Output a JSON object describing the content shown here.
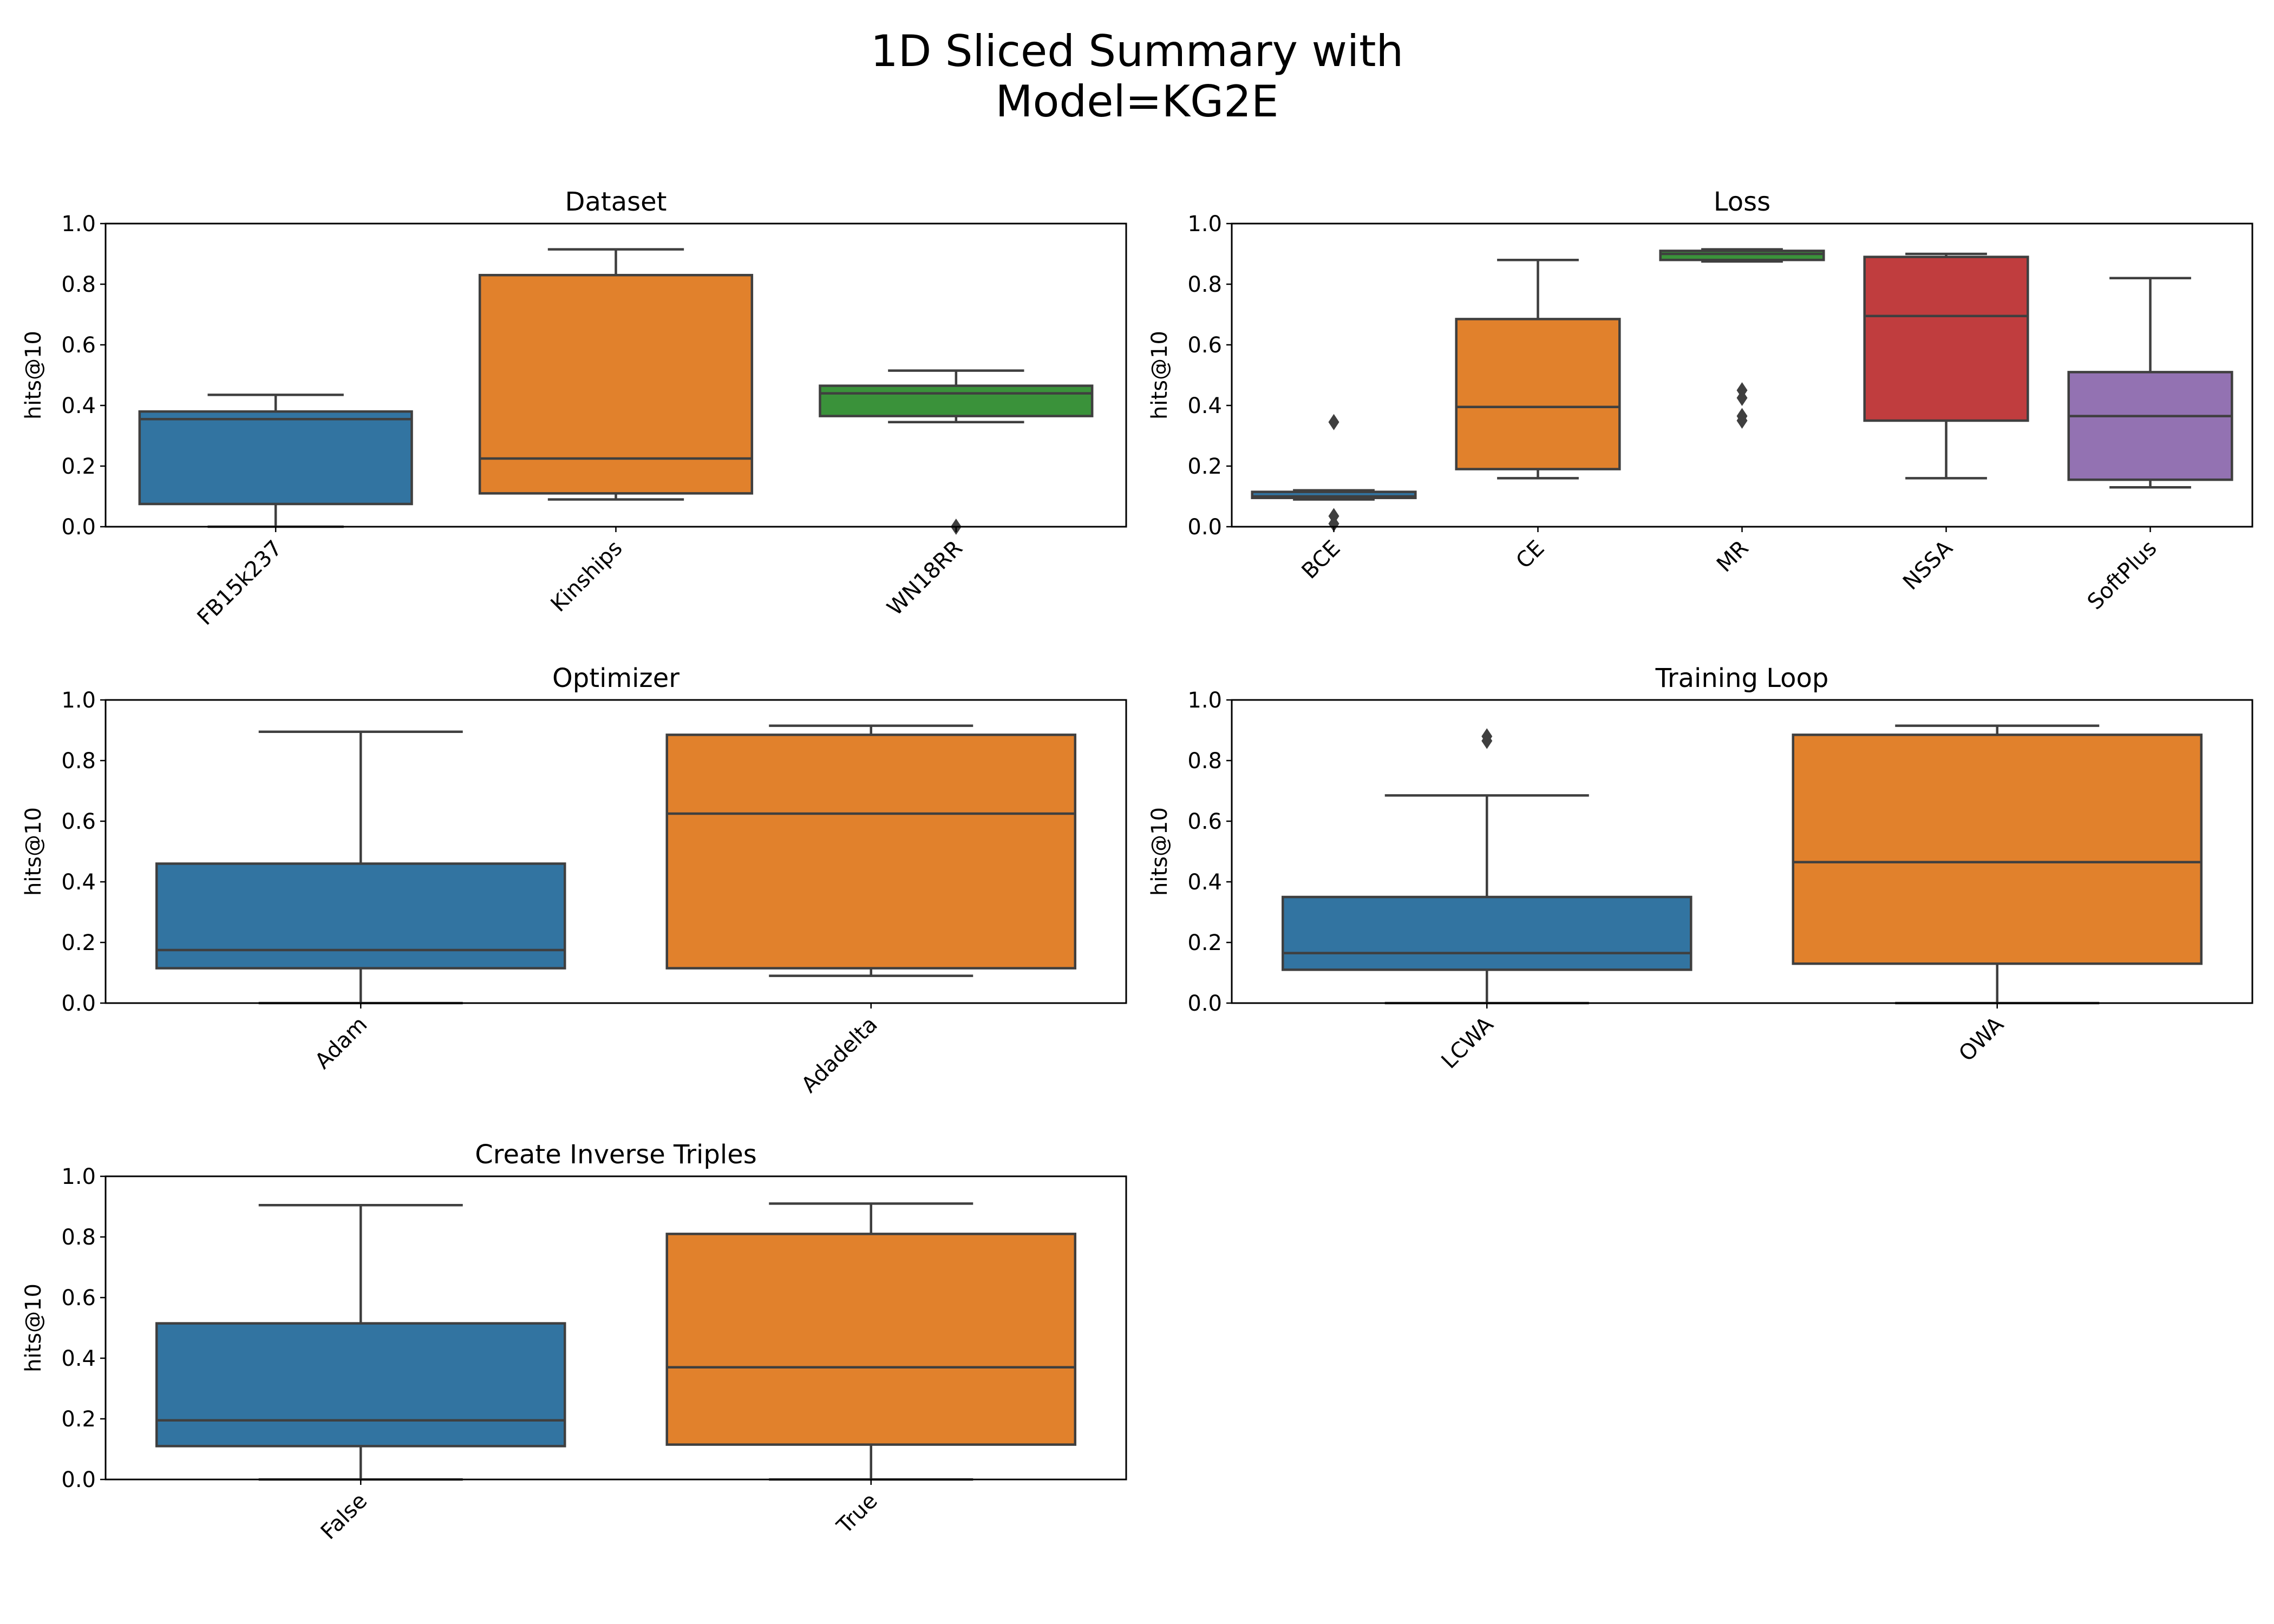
{
  "figure_title_lines": [
    "1D Sliced Summary with",
    "Model=KG2E"
  ],
  "chart_data": [
    {
      "type": "box",
      "title": "Dataset",
      "xlabel": "",
      "ylabel": "hits@10",
      "ylim": [
        0.0,
        1.0
      ],
      "yticks": [
        "0.0",
        "0.2",
        "0.4",
        "0.6",
        "0.8",
        "1.0"
      ],
      "categories": [
        "FB15k237",
        "Kinships",
        "WN18RR"
      ],
      "colors": [
        "#3274a1",
        "#e1812c",
        "#3a923a"
      ],
      "boxes": [
        {
          "whislo": 0.0,
          "q1": 0.075,
          "med": 0.355,
          "q3": 0.38,
          "whishi": 0.435,
          "fliers": []
        },
        {
          "whislo": 0.09,
          "q1": 0.11,
          "med": 0.225,
          "q3": 0.83,
          "whishi": 0.915,
          "fliers": []
        },
        {
          "whislo": 0.345,
          "q1": 0.365,
          "med": 0.44,
          "q3": 0.465,
          "whishi": 0.515,
          "fliers": [
            0.0
          ]
        }
      ]
    },
    {
      "type": "box",
      "title": "Loss",
      "xlabel": "",
      "ylabel": "hits@10",
      "ylim": [
        0.0,
        1.0
      ],
      "yticks": [
        "0.0",
        "0.2",
        "0.4",
        "0.6",
        "0.8",
        "1.0"
      ],
      "categories": [
        "BCE",
        "CE",
        "MR",
        "NSSA",
        "SoftPlus"
      ],
      "colors": [
        "#3274a1",
        "#e1812c",
        "#3a923a",
        "#c03d3e",
        "#9372b2"
      ],
      "boxes": [
        {
          "whislo": 0.09,
          "q1": 0.095,
          "med": 0.1,
          "q3": 0.115,
          "whishi": 0.12,
          "fliers": [
            0.345,
            0.035,
            0.01
          ]
        },
        {
          "whislo": 0.16,
          "q1": 0.19,
          "med": 0.395,
          "q3": 0.685,
          "whishi": 0.88,
          "fliers": []
        },
        {
          "whislo": 0.875,
          "q1": 0.88,
          "med": 0.9,
          "q3": 0.91,
          "whishi": 0.915,
          "fliers": [
            0.45,
            0.425,
            0.365,
            0.35
          ]
        },
        {
          "whislo": 0.16,
          "q1": 0.35,
          "med": 0.695,
          "q3": 0.89,
          "whishi": 0.9,
          "fliers": []
        },
        {
          "whislo": 0.13,
          "q1": 0.155,
          "med": 0.365,
          "q3": 0.51,
          "whishi": 0.82,
          "fliers": []
        }
      ]
    },
    {
      "type": "box",
      "title": "Optimizer",
      "xlabel": "",
      "ylabel": "hits@10",
      "ylim": [
        0.0,
        1.0
      ],
      "yticks": [
        "0.0",
        "0.2",
        "0.4",
        "0.6",
        "0.8",
        "1.0"
      ],
      "categories": [
        "Adam",
        "Adadelta"
      ],
      "colors": [
        "#3274a1",
        "#e1812c"
      ],
      "boxes": [
        {
          "whislo": 0.0,
          "q1": 0.115,
          "med": 0.175,
          "q3": 0.46,
          "whishi": 0.895,
          "fliers": []
        },
        {
          "whislo": 0.09,
          "q1": 0.115,
          "med": 0.625,
          "q3": 0.885,
          "whishi": 0.915,
          "fliers": []
        }
      ]
    },
    {
      "type": "box",
      "title": "Training Loop",
      "xlabel": "",
      "ylabel": "hits@10",
      "ylim": [
        0.0,
        1.0
      ],
      "yticks": [
        "0.0",
        "0.2",
        "0.4",
        "0.6",
        "0.8",
        "1.0"
      ],
      "categories": [
        "LCWA",
        "OWA"
      ],
      "colors": [
        "#3274a1",
        "#e1812c"
      ],
      "boxes": [
        {
          "whislo": 0.0,
          "q1": 0.11,
          "med": 0.165,
          "q3": 0.35,
          "whishi": 0.685,
          "fliers": [
            0.88,
            0.865
          ]
        },
        {
          "whislo": 0.0,
          "q1": 0.13,
          "med": 0.465,
          "q3": 0.885,
          "whishi": 0.915,
          "fliers": []
        }
      ]
    },
    {
      "type": "box",
      "title": "Create Inverse Triples",
      "xlabel": "",
      "ylabel": "hits@10",
      "ylim": [
        0.0,
        1.0
      ],
      "yticks": [
        "0.0",
        "0.2",
        "0.4",
        "0.6",
        "0.8",
        "1.0"
      ],
      "categories": [
        "False",
        "True"
      ],
      "colors": [
        "#3274a1",
        "#e1812c"
      ],
      "boxes": [
        {
          "whislo": 0.0,
          "q1": 0.11,
          "med": 0.195,
          "q3": 0.515,
          "whishi": 0.905,
          "fliers": []
        },
        {
          "whislo": 0.0,
          "q1": 0.115,
          "med": 0.37,
          "q3": 0.81,
          "whishi": 0.91,
          "fliers": []
        }
      ]
    }
  ]
}
